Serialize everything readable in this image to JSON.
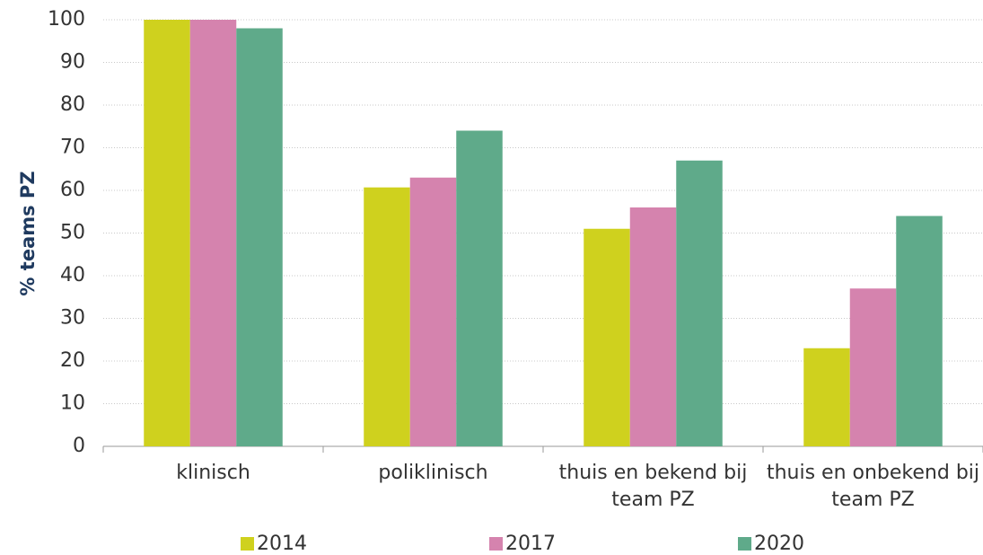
{
  "chart_data": {
    "type": "bar",
    "ylabel": "% teams PZ",
    "categories": [
      "klinisch",
      "poliklinisch",
      "thuis en bekend bij team PZ",
      "thuis en onbekend bij team PZ"
    ],
    "series": [
      {
        "name": "2014",
        "color": "#cfd11e",
        "values": [
          100,
          60.7,
          51,
          23
        ]
      },
      {
        "name": "2017",
        "color": "#d583ae",
        "values": [
          100,
          63,
          56,
          37
        ]
      },
      {
        "name": "2020",
        "color": "#5faa8a",
        "values": [
          98,
          74,
          67,
          54
        ]
      }
    ],
    "ylim": [
      0,
      100
    ],
    "yticks": [
      0,
      10,
      20,
      30,
      40,
      50,
      60,
      70,
      80,
      90,
      100
    ],
    "grid": true,
    "legend": "bottom"
  }
}
